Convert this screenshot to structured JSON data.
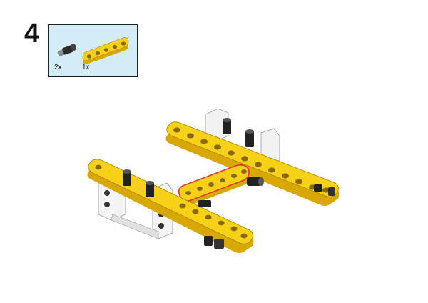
{
  "step": {
    "number": "4"
  },
  "parts": [
    {
      "icon": "black-pin-icon",
      "quantity": "2x"
    },
    {
      "icon": "yellow-beam-icon",
      "quantity": "1x"
    }
  ],
  "colors": {
    "callout_bg": "#d4ebf8",
    "beam_yellow": "#f7d117",
    "beam_shadow": "#d9a800",
    "frame_white": "#f2f2f2",
    "pin_black": "#222222",
    "highlight_red": "#e8322b"
  }
}
